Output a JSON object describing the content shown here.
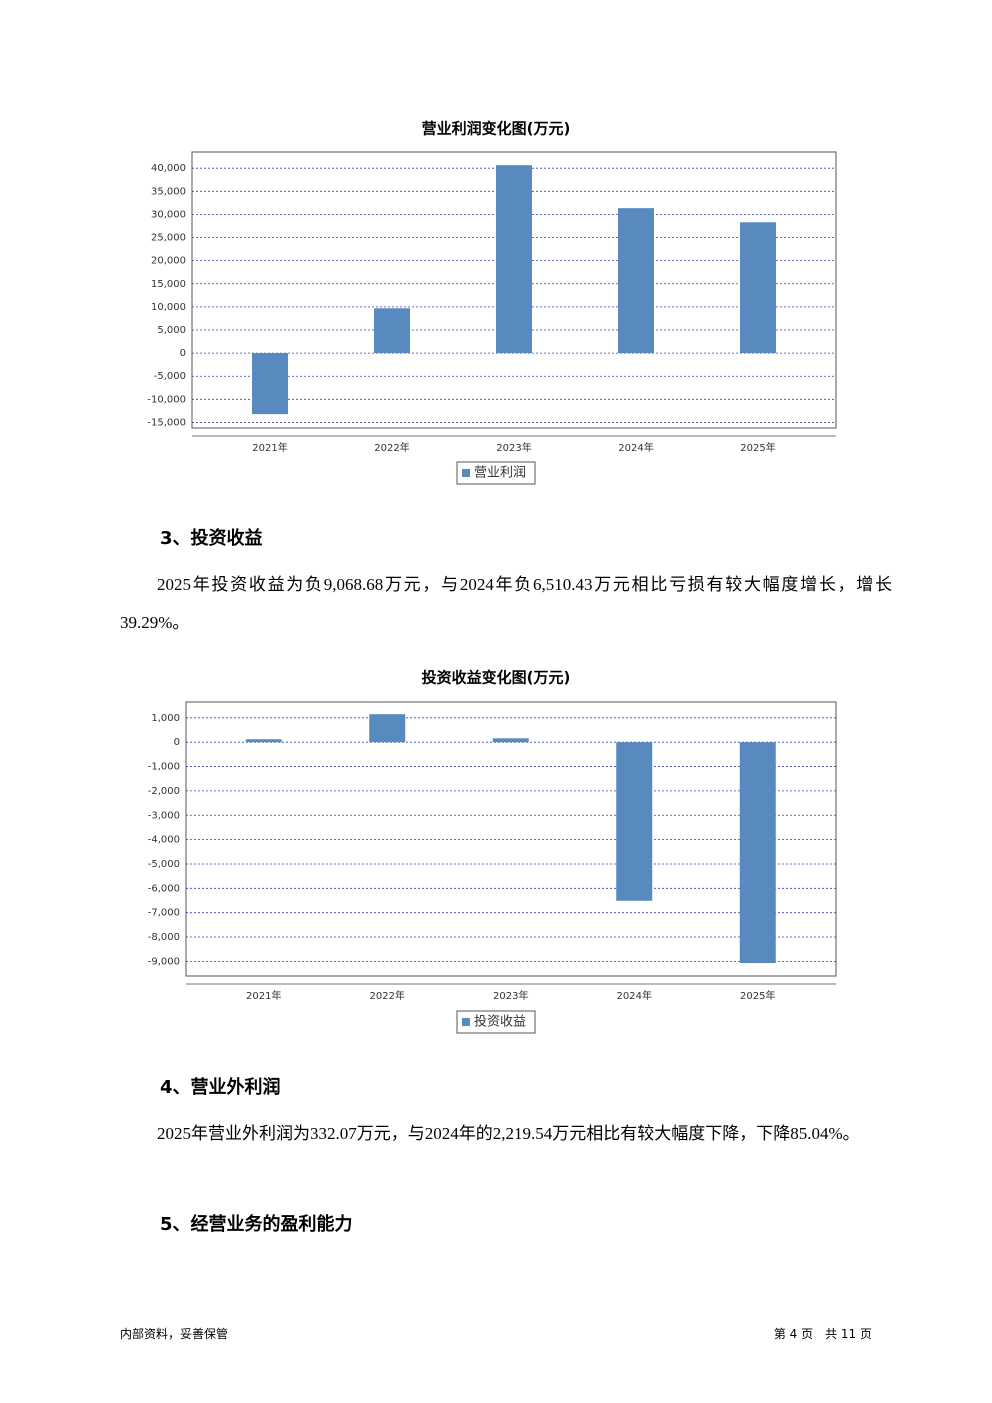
{
  "chart_data": [
    {
      "type": "bar",
      "title": "营业利润变化图(万元)",
      "categories": [
        "2021年",
        "2022年",
        "2023年",
        "2024年",
        "2025年"
      ],
      "series": [
        {
          "name": "营业利润",
          "color": "#5889bf",
          "values": [
            -13200,
            9700,
            40650,
            31350,
            28300
          ]
        }
      ],
      "ylim": [
        -16200,
        43500
      ],
      "yticks": [
        {
          "value": -15000,
          "label": "-15,000"
        },
        {
          "value": -10000,
          "label": "-10,000"
        },
        {
          "value": -5000,
          "label": "-5,000"
        },
        0,
        {
          "value": 5000,
          "label": "5,000"
        },
        {
          "value": 10000,
          "label": "10,000"
        },
        {
          "value": 15000,
          "label": "15,000"
        },
        {
          "value": 20000,
          "label": "20,000"
        },
        {
          "value": 25000,
          "label": "25,000"
        },
        {
          "value": 30000,
          "label": "30,000"
        },
        {
          "value": 35000,
          "label": "35,000"
        },
        {
          "value": 40000,
          "label": "40,000"
        }
      ],
      "grid": true
    },
    {
      "type": "bar",
      "title": "投资收益变化图(万元)",
      "categories": [
        "2021年",
        "2022年",
        "2023年",
        "2024年",
        "2025年"
      ],
      "series": [
        {
          "name": "投资收益",
          "color": "#5889bf",
          "values": [
            120,
            1150,
            160,
            -6510.43,
            -9068.68
          ]
        }
      ],
      "ylim": [
        -9600,
        1650
      ],
      "yticks": [
        {
          "value": -9000,
          "label": "-9,000"
        },
        {
          "value": -8000,
          "label": "-8,000"
        },
        {
          "value": -7000,
          "label": "-7,000"
        },
        {
          "value": -6000,
          "label": "-6,000"
        },
        {
          "value": -5000,
          "label": "-5,000"
        },
        {
          "value": -4000,
          "label": "-4,000"
        },
        {
          "value": -3000,
          "label": "-3,000"
        },
        {
          "value": -2000,
          "label": "-2,000"
        },
        {
          "value": -1000,
          "label": "-1,000"
        },
        0,
        {
          "value": 1000,
          "label": "1,000"
        }
      ],
      "grid": true
    }
  ],
  "sections": [
    {
      "heading": "3、投资收益",
      "paragraph": "2025年投资收益为负9,068.68万元，与2024年负6,510.43万元相比亏损有较大幅度增长，增长39.29%。"
    },
    {
      "heading": "4、营业外利润",
      "paragraph": "2025年营业外利润为332.07万元，与2024年的2,219.54万元相比有较大幅度下降，下降85.04%。"
    },
    {
      "heading": "5、经营业务的盈利能力"
    }
  ],
  "footer": {
    "left": "内部资料，妥善保管",
    "right": "第 4 页　共 11 页"
  }
}
